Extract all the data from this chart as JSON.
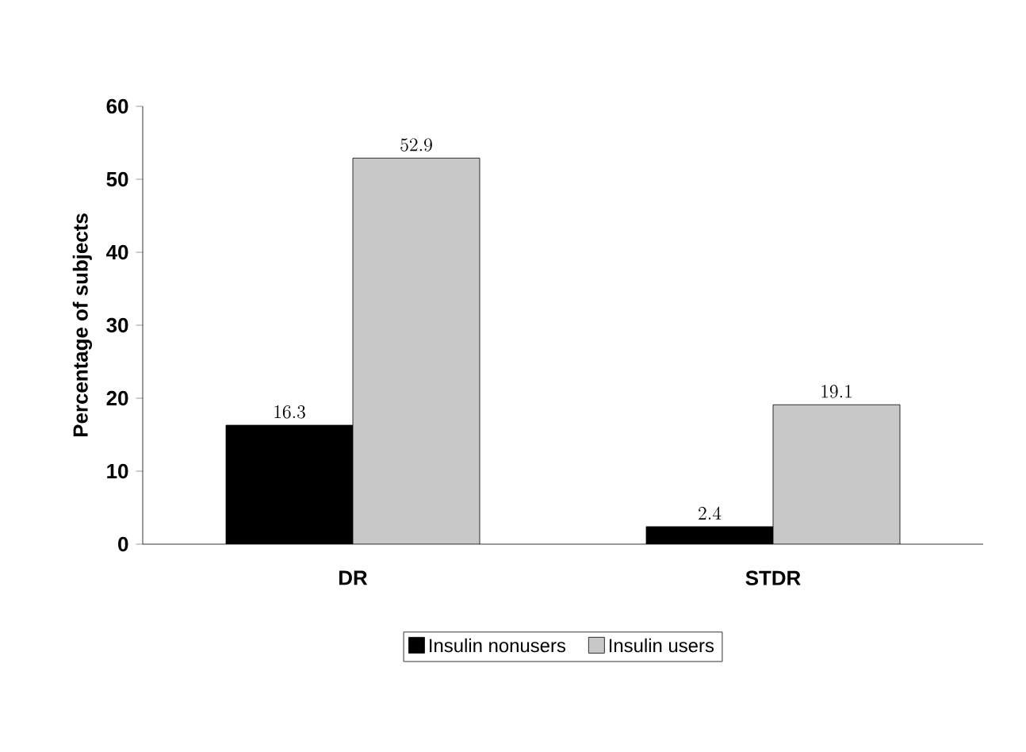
{
  "chart_data": {
    "type": "bar",
    "ylabel": "Percentage of subjects",
    "categories": [
      "DR",
      "STDR"
    ],
    "series": [
      {
        "name": "Insulin nonusers",
        "color": "#000000",
        "values": [
          16.3,
          2.4
        ]
      },
      {
        "name": "Insulin users",
        "color": "#c8c8c8",
        "values": [
          52.9,
          19.1
        ]
      }
    ],
    "ylim": [
      0,
      60
    ],
    "yticks": [
      0,
      10,
      20,
      30,
      40,
      50,
      60
    ],
    "data_labels": true,
    "legend": "bottom",
    "grid": false
  }
}
